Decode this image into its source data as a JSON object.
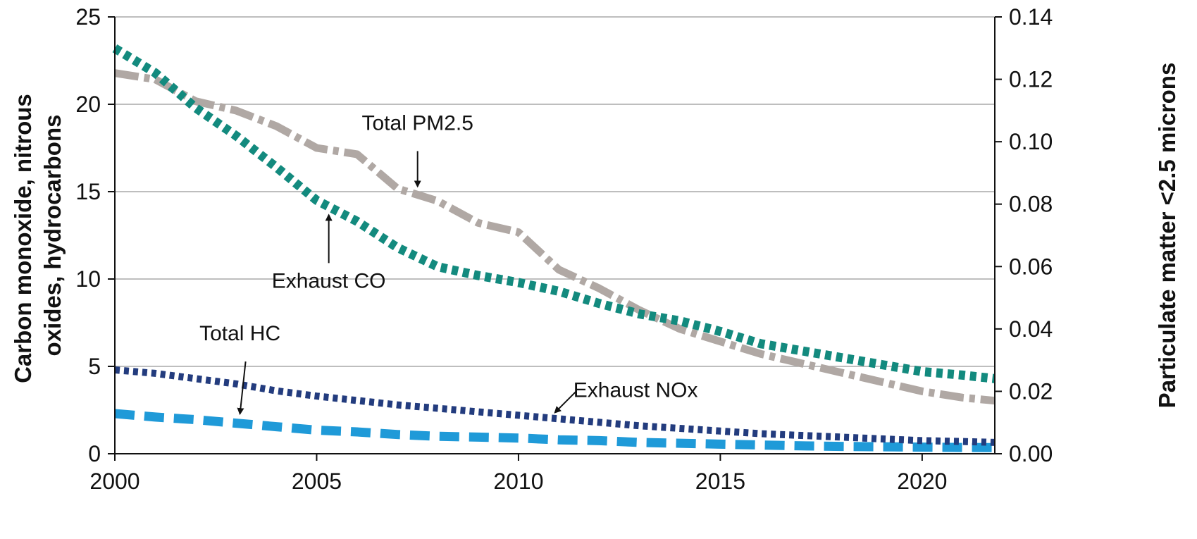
{
  "chart_data": {
    "type": "line",
    "title": "",
    "xlabel": "",
    "ylabel": "Carbon monoxide, nitrous oxides, hydrocarbons",
    "ylabel_lines": [
      "Carbon monoxide, nitrous",
      "oxides, hydrocarbons"
    ],
    "y2label": "Particulate matter <2.5 microns",
    "xlim": [
      2000,
      2021.8
    ],
    "ylim": [
      0,
      25
    ],
    "y2lim": [
      0,
      0.14
    ],
    "x_ticks": [
      "2000",
      "2005",
      "2010",
      "2015",
      "2020"
    ],
    "y_ticks": [
      "0",
      "5",
      "10",
      "15",
      "20",
      "25"
    ],
    "y2_ticks": [
      "0.00",
      "0.02",
      "0.04",
      "0.06",
      "0.08",
      "0.10",
      "0.12",
      "0.14"
    ],
    "grid": "horizontal",
    "legend": "none",
    "series": [
      {
        "name": "Exhaust CO",
        "axis": "left",
        "color": "#138a7e",
        "style": "dotted-thick",
        "x": [
          2000,
          2001,
          2002,
          2003,
          2004,
          2005,
          2006,
          2007,
          2008,
          2009,
          2010,
          2011,
          2012,
          2013,
          2014,
          2015,
          2016,
          2017,
          2018,
          2019,
          2020,
          2021,
          2021.8
        ],
        "y": [
          23.2,
          21.8,
          19.8,
          18.2,
          16.4,
          14.5,
          13.3,
          11.8,
          10.7,
          10.2,
          9.8,
          9.3,
          8.6,
          8.0,
          7.6,
          7.0,
          6.3,
          5.9,
          5.5,
          5.1,
          4.7,
          4.5,
          4.3
        ]
      },
      {
        "name": "Total PM2.5",
        "axis": "right",
        "color": "#b0a8a4",
        "style": "dash-dot",
        "x": [
          2000,
          2001,
          2002,
          2003,
          2004,
          2005,
          2006,
          2007,
          2008,
          2009,
          2010,
          2011,
          2012,
          2013,
          2014,
          2015,
          2016,
          2017,
          2018,
          2019,
          2020,
          2021,
          2021.8
        ],
        "y": [
          0.122,
          0.12,
          0.113,
          0.11,
          0.105,
          0.098,
          0.096,
          0.085,
          0.081,
          0.074,
          0.071,
          0.059,
          0.053,
          0.046,
          0.04,
          0.036,
          0.032,
          0.029,
          0.026,
          0.023,
          0.02,
          0.018,
          0.017
        ]
      },
      {
        "name": "Exhaust NOx",
        "axis": "left",
        "color": "#233c7e",
        "style": "dotted",
        "x": [
          2000,
          2001,
          2002,
          2003,
          2004,
          2005,
          2006,
          2007,
          2008,
          2009,
          2010,
          2011,
          2012,
          2013,
          2014,
          2015,
          2016,
          2017,
          2018,
          2019,
          2020,
          2021,
          2021.8
        ],
        "y": [
          4.8,
          4.6,
          4.3,
          4.0,
          3.6,
          3.3,
          3.05,
          2.8,
          2.6,
          2.4,
          2.2,
          2.0,
          1.8,
          1.6,
          1.45,
          1.3,
          1.15,
          1.05,
          0.95,
          0.85,
          0.75,
          0.7,
          0.65
        ]
      },
      {
        "name": "Total HC",
        "axis": "left",
        "color": "#1f9ad8",
        "style": "dashed",
        "x": [
          2000,
          2001,
          2002,
          2003,
          2004,
          2005,
          2006,
          2007,
          2008,
          2009,
          2010,
          2011,
          2012,
          2013,
          2014,
          2015,
          2016,
          2017,
          2018,
          2019,
          2020,
          2021,
          2021.8
        ],
        "y": [
          2.3,
          2.1,
          1.95,
          1.75,
          1.55,
          1.35,
          1.25,
          1.1,
          1.0,
          0.95,
          0.9,
          0.8,
          0.75,
          0.65,
          0.6,
          0.55,
          0.5,
          0.45,
          0.42,
          0.4,
          0.38,
          0.36,
          0.35
        ]
      }
    ],
    "annotations": [
      {
        "text": "Total PM2.5",
        "series": "Total PM2.5",
        "x": 2007.5
      },
      {
        "text": "Exhaust CO",
        "series": "Exhaust CO",
        "x": 2005.3
      },
      {
        "text": "Total HC",
        "series": "Total HC",
        "x": 2003.1
      },
      {
        "text": "Exhaust NOx",
        "series": "Exhaust NOx",
        "x": 2010.8
      }
    ]
  }
}
